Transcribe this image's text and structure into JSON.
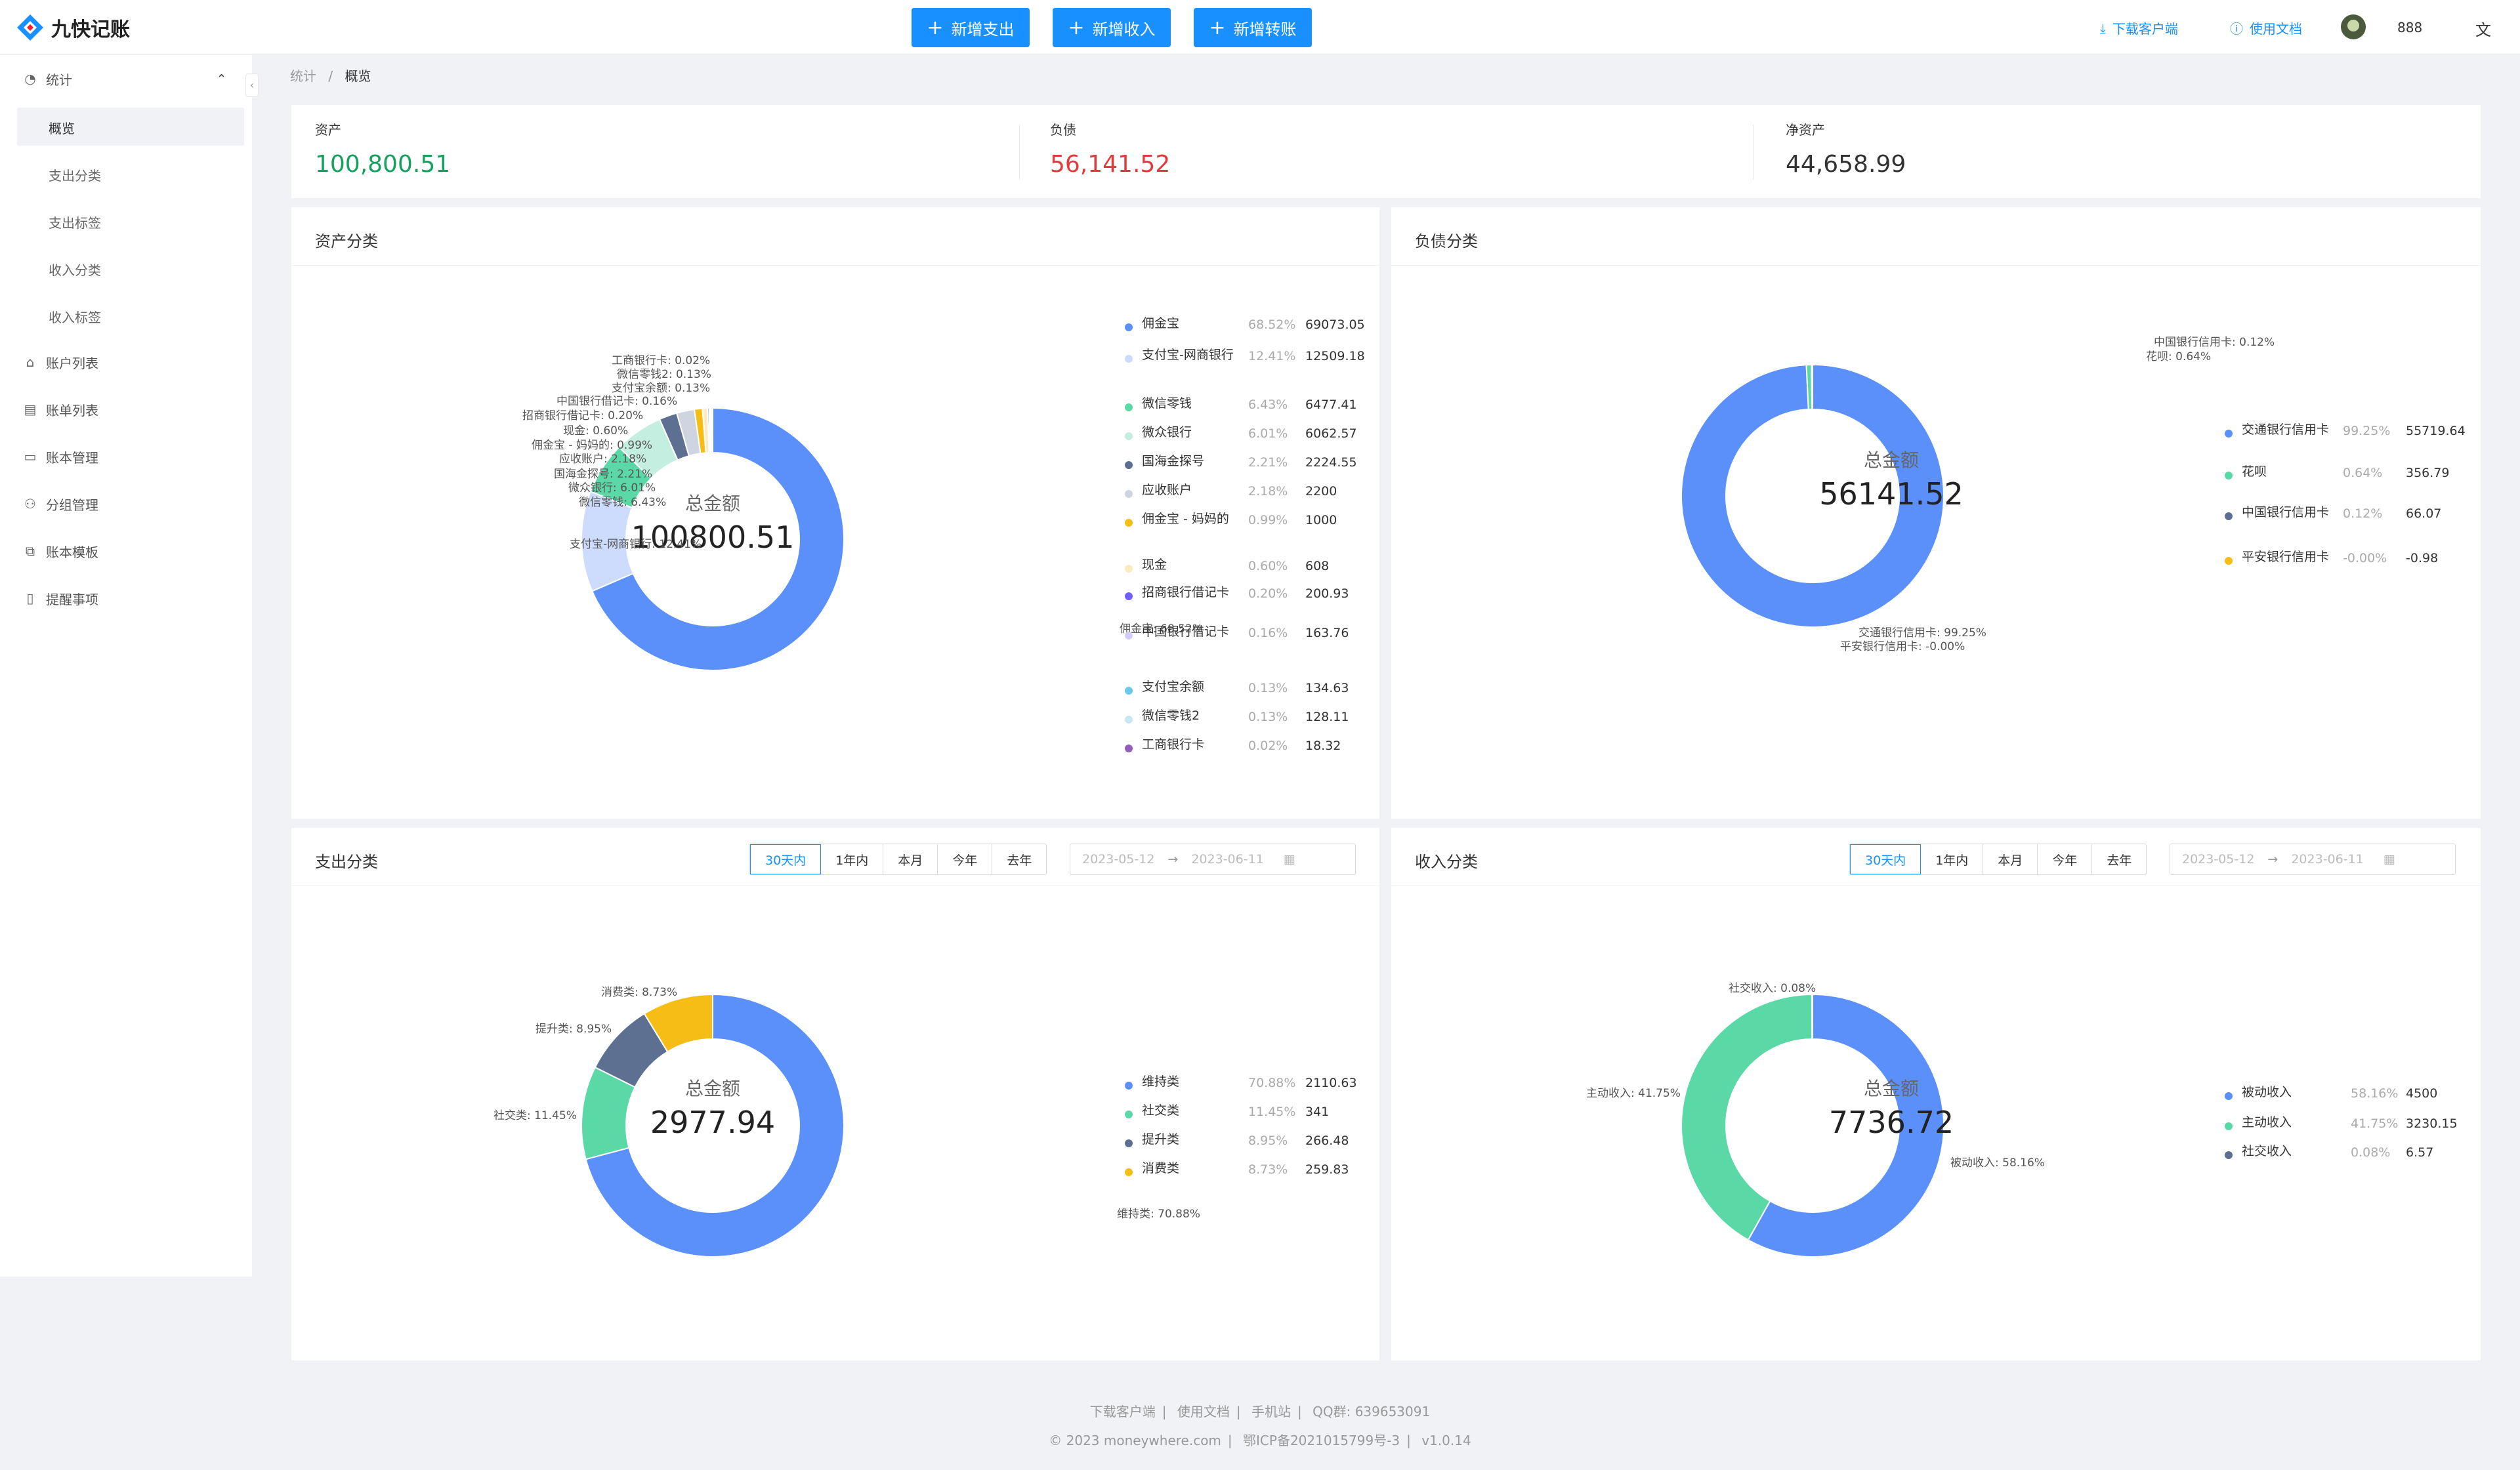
{
  "app": {
    "title": "九快记账"
  },
  "toolbar": {
    "add_expense": "新增支出",
    "add_income": "新增收入",
    "add_transfer": "新增转账",
    "download_client": "下载客户端",
    "docs": "使用文档",
    "username": "888"
  },
  "sidebar": {
    "stats": "统计",
    "sub": [
      "概览",
      "支出分类",
      "支出标签",
      "收入分类",
      "收入标签"
    ],
    "items": [
      "账户列表",
      "账单列表",
      "账本管理",
      "分组管理",
      "账本模板",
      "提醒事项"
    ]
  },
  "breadcrumb": {
    "parent": "统计",
    "current": "概览"
  },
  "summary": {
    "assets_label": "资产",
    "assets_value": "100,800.51",
    "assets_color": "#15a05e",
    "debt_label": "负债",
    "debt_value": "56,141.52",
    "debt_color": "#e4393c",
    "net_label": "净资产",
    "net_value": "44,658.99"
  },
  "center_label": "总金额",
  "ranges": [
    "30天内",
    "1年内",
    "本月",
    "今年",
    "去年"
  ],
  "date_range": {
    "start": "2023-05-12",
    "end": "2023-06-11"
  },
  "footer": {
    "links": [
      "下载客户端",
      "使用文档",
      "手机站",
      "QQ群: 639653091"
    ],
    "copy": [
      "© 2023 moneywhere.com",
      "鄂ICP备2021015799号-3",
      "v1.0.14"
    ]
  },
  "chart_data": [
    {
      "type": "pie",
      "title": "资产分类",
      "total": "100800.51",
      "slices": [
        {
          "name": "佣金宝",
          "percent": "68.52%",
          "value": "69073.05",
          "color": "#5b8ff9"
        },
        {
          "name": "支付宝-网商银行",
          "percent": "12.41%",
          "value": "12509.18",
          "color": "#cddcfc"
        },
        {
          "name": "微信零钱",
          "percent": "6.43%",
          "value": "6477.41",
          "color": "#5ad8a6"
        },
        {
          "name": "微众银行",
          "percent": "6.01%",
          "value": "6062.57",
          "color": "#c4efe0"
        },
        {
          "name": "国海金探号",
          "percent": "2.21%",
          "value": "2224.55",
          "color": "#5d7092"
        },
        {
          "name": "应收账户",
          "percent": "2.18%",
          "value": "2200",
          "color": "#cfd5e0"
        },
        {
          "name": "佣金宝 - 妈妈的",
          "percent": "0.99%",
          "value": "1000",
          "color": "#f6bd16"
        },
        {
          "name": "现金",
          "percent": "0.60%",
          "value": "608",
          "color": "#fcebc0"
        },
        {
          "name": "招商银行借记卡",
          "percent": "0.20%",
          "value": "200.93",
          "color": "#6f5ef9"
        },
        {
          "name": "中国银行借记卡",
          "percent": "0.16%",
          "value": "163.76",
          "color": "#d2cdfd"
        },
        {
          "name": "支付宝余额",
          "percent": "0.13%",
          "value": "134.63",
          "color": "#6dc8ec"
        },
        {
          "name": "微信零钱2",
          "percent": "0.13%",
          "value": "128.11",
          "color": "#c8e8f5"
        },
        {
          "name": "工商银行卡",
          "percent": "0.02%",
          "value": "18.32",
          "color": "#945fb9"
        }
      ]
    },
    {
      "type": "pie",
      "title": "负债分类",
      "total": "56141.52",
      "slices": [
        {
          "name": "交通银行信用卡",
          "percent": "99.25%",
          "value": "55719.64",
          "color": "#5b8ff9"
        },
        {
          "name": "花呗",
          "percent": "0.64%",
          "value": "356.79",
          "color": "#5ad8a6"
        },
        {
          "name": "中国银行信用卡",
          "percent": "0.12%",
          "value": "66.07",
          "color": "#5d7092"
        },
        {
          "name": "平安银行信用卡",
          "percent": "-0.00%",
          "value": "-0.98",
          "color": "#f6bd16"
        }
      ]
    },
    {
      "type": "pie",
      "title": "支出分类",
      "total": "2977.94",
      "slices": [
        {
          "name": "维持类",
          "percent": "70.88%",
          "value": "2110.63",
          "color": "#5b8ff9"
        },
        {
          "name": "社交类",
          "percent": "11.45%",
          "value": "341",
          "color": "#5ad8a6"
        },
        {
          "name": "提升类",
          "percent": "8.95%",
          "value": "266.48",
          "color": "#5d7092"
        },
        {
          "name": "消费类",
          "percent": "8.73%",
          "value": "259.83",
          "color": "#f6bd16"
        }
      ]
    },
    {
      "type": "pie",
      "title": "收入分类",
      "total": "7736.72",
      "slices": [
        {
          "name": "被动收入",
          "percent": "58.16%",
          "value": "4500",
          "color": "#5b8ff9"
        },
        {
          "name": "主动收入",
          "percent": "41.75%",
          "value": "3230.15",
          "color": "#5ad8a6"
        },
        {
          "name": "社交收入",
          "percent": "0.08%",
          "value": "6.57",
          "color": "#5d7092"
        }
      ]
    }
  ]
}
